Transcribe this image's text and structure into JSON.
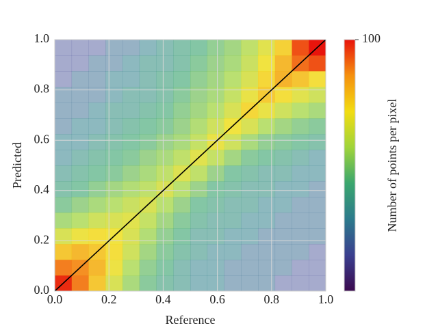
{
  "chart_data": {
    "type": "density2d",
    "xlabel": "Reference",
    "ylabel": "Predicted",
    "colorbar_label": "Number of points per pixel",
    "xlim": [
      0,
      1
    ],
    "ylim": [
      0,
      1
    ],
    "xticks": [
      {
        "value": 0,
        "label": "0.0"
      },
      {
        "value": 0.2,
        "label": "0.2"
      },
      {
        "value": 0.4,
        "label": "0.4"
      },
      {
        "value": 0.6,
        "label": "0.6"
      },
      {
        "value": 0.8,
        "label": "0.8"
      },
      {
        "value": 1,
        "label": "1.0"
      }
    ],
    "yticks": [
      {
        "value": 0,
        "label": "0.0"
      },
      {
        "value": 0.2,
        "label": "0.2"
      },
      {
        "value": 0.4,
        "label": "0.4"
      },
      {
        "value": 0.6,
        "label": "0.6"
      },
      {
        "value": 0.8,
        "label": "0.8"
      },
      {
        "value": 1,
        "label": "1.0"
      }
    ],
    "clim": [
      1,
      100
    ],
    "cticks": [
      100
    ],
    "cscale": "log",
    "colormap": [
      "#3b0a4f",
      "#3a3f8f",
      "#2c7a8c",
      "#3aa66e",
      "#9fd43a",
      "#f2dc12",
      "#f5900e",
      "#e8140c"
    ],
    "grid": true,
    "identity_line": true,
    "line_color": "#000000",
    "z": [
      [
        90,
        60,
        35,
        20,
        12,
        8,
        6,
        5,
        4,
        4,
        3,
        3,
        3,
        2,
        2,
        2
      ],
      [
        60,
        55,
        40,
        25,
        14,
        9,
        7,
        5,
        4,
        4,
        3,
        3,
        3,
        3,
        2,
        2
      ],
      [
        35,
        40,
        35,
        28,
        18,
        11,
        8,
        6,
        5,
        4,
        4,
        3,
        3,
        3,
        3,
        2
      ],
      [
        20,
        25,
        28,
        26,
        20,
        13,
        9,
        7,
        5,
        5,
        4,
        4,
        3,
        3,
        3,
        3
      ],
      [
        12,
        14,
        18,
        20,
        22,
        16,
        11,
        8,
        6,
        5,
        5,
        4,
        4,
        3,
        3,
        3
      ],
      [
        8,
        10,
        12,
        14,
        17,
        20,
        14,
        10,
        7,
        6,
        5,
        5,
        4,
        4,
        3,
        3
      ],
      [
        6,
        7,
        9,
        11,
        13,
        15,
        20,
        14,
        10,
        7,
        6,
        5,
        5,
        4,
        4,
        3
      ],
      [
        5,
        6,
        7,
        8,
        10,
        12,
        15,
        21,
        15,
        10,
        7,
        6,
        5,
        5,
        4,
        4
      ],
      [
        4,
        5,
        6,
        7,
        8,
        10,
        12,
        15,
        22,
        16,
        11,
        8,
        7,
        6,
        5,
        4
      ],
      [
        4,
        4,
        5,
        6,
        7,
        8,
        10,
        12,
        16,
        24,
        18,
        12,
        9,
        8,
        7,
        6
      ],
      [
        3,
        4,
        4,
        5,
        6,
        7,
        8,
        10,
        13,
        18,
        26,
        20,
        14,
        11,
        9,
        8
      ],
      [
        3,
        3,
        4,
        5,
        5,
        6,
        7,
        9,
        11,
        14,
        20,
        30,
        24,
        18,
        14,
        12
      ],
      [
        3,
        3,
        3,
        4,
        5,
        5,
        6,
        8,
        10,
        12,
        16,
        24,
        34,
        28,
        22,
        18
      ],
      [
        2,
        3,
        3,
        4,
        4,
        5,
        6,
        7,
        9,
        11,
        14,
        20,
        30,
        42,
        36,
        28
      ],
      [
        2,
        2,
        3,
        3,
        4,
        5,
        5,
        6,
        8,
        10,
        12,
        17,
        26,
        40,
        65,
        75
      ],
      [
        2,
        2,
        2,
        3,
        3,
        4,
        5,
        6,
        7,
        9,
        11,
        15,
        22,
        32,
        75,
        100
      ]
    ]
  }
}
